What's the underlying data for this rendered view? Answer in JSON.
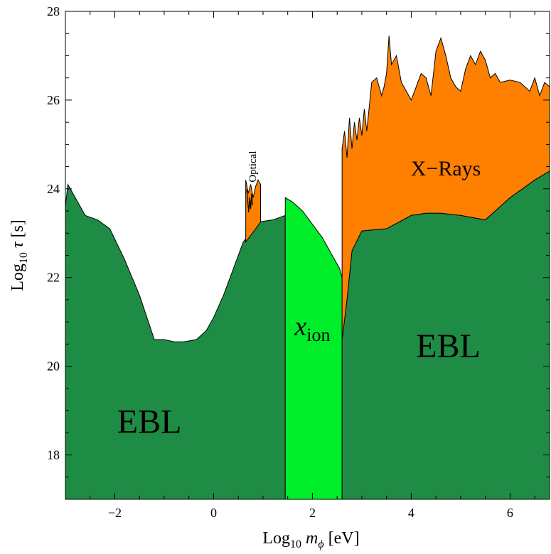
{
  "chart_data": {
    "type": "area",
    "title": "",
    "xlabel": "Log₁₀ mϕ [eV]",
    "ylabel": "Log₁₀ τ [s]",
    "xlabel_parts": {
      "prefix": "Log",
      "sub": "10",
      "var": "m",
      "var_sub": "ϕ",
      "unit": " [eV]"
    },
    "ylabel_parts": {
      "prefix": "Log",
      "sub": "10",
      "var": "τ",
      "unit": " [s]"
    },
    "xlim": [
      -3,
      6.8
    ],
    "ylim": [
      17,
      28
    ],
    "xticks": [
      -2,
      0,
      2,
      4,
      6
    ],
    "xtick_labels": [
      "−2",
      "0",
      "2",
      "4",
      "6"
    ],
    "yticks": [
      18,
      20,
      22,
      24,
      26,
      28
    ],
    "ytick_labels": [
      "18",
      "20",
      "22",
      "24",
      "26",
      "28"
    ],
    "colors": {
      "ebl": "#1f8c45",
      "xion": "#00ee2a",
      "xrays": "#ff8000",
      "optical": "#ff8000"
    },
    "regions": [
      {
        "name": "EBL",
        "label": "EBL",
        "color_key": "ebl",
        "label_pos": {
          "x": -1.3,
          "y": 18.5
        },
        "boundary": [
          [
            -3.0,
            23.6
          ],
          [
            -2.95,
            24.1
          ],
          [
            -2.6,
            23.4
          ],
          [
            -2.35,
            23.3
          ],
          [
            -2.1,
            23.1
          ],
          [
            -1.8,
            22.4
          ],
          [
            -1.5,
            21.6
          ],
          [
            -1.2,
            20.6
          ],
          [
            -1.0,
            20.6
          ],
          [
            -0.8,
            20.55
          ],
          [
            -0.6,
            20.55
          ],
          [
            -0.35,
            20.6
          ],
          [
            -0.15,
            20.8
          ],
          [
            0.0,
            21.1
          ],
          [
            0.2,
            21.6
          ],
          [
            0.4,
            22.2
          ],
          [
            0.6,
            22.8
          ],
          [
            0.9,
            23.25
          ],
          [
            1.2,
            23.3
          ],
          [
            1.45,
            23.4
          ]
        ]
      },
      {
        "name": "x_ion",
        "label": "x",
        "label_sub": "ion",
        "color_key": "xion",
        "label_pos": {
          "x": 2.0,
          "y": 20.7
        },
        "boundary": [
          [
            1.45,
            23.8
          ],
          [
            1.6,
            23.7
          ],
          [
            1.8,
            23.5
          ],
          [
            2.0,
            23.2
          ],
          [
            2.2,
            22.9
          ],
          [
            2.4,
            22.5
          ],
          [
            2.55,
            22.2
          ],
          [
            2.6,
            22.0
          ]
        ]
      },
      {
        "name": "EBL",
        "label": "EBL",
        "color_key": "ebl",
        "label_pos": {
          "x": 4.75,
          "y": 20.2
        },
        "boundary": [
          [
            2.6,
            20.6
          ],
          [
            2.7,
            21.5
          ],
          [
            2.8,
            22.6
          ],
          [
            3.0,
            23.05
          ],
          [
            3.5,
            23.1
          ],
          [
            4.0,
            23.4
          ],
          [
            4.3,
            23.45
          ],
          [
            4.6,
            23.45
          ],
          [
            5.0,
            23.4
          ],
          [
            5.5,
            23.3
          ],
          [
            6.0,
            23.8
          ],
          [
            6.5,
            24.2
          ],
          [
            6.8,
            24.4
          ]
        ]
      },
      {
        "name": "X-Rays",
        "label": "X−Rays",
        "color_key": "xrays",
        "label_pos": {
          "x": 4.7,
          "y": 24.3
        },
        "upper": [
          [
            2.6,
            24.9
          ],
          [
            2.65,
            25.3
          ],
          [
            2.7,
            24.7
          ],
          [
            2.75,
            25.6
          ],
          [
            2.8,
            24.9
          ],
          [
            2.85,
            25.5
          ],
          [
            2.9,
            25.1
          ],
          [
            2.95,
            25.6
          ],
          [
            3.0,
            25.2
          ],
          [
            3.05,
            25.8
          ],
          [
            3.1,
            25.3
          ],
          [
            3.2,
            26.4
          ],
          [
            3.3,
            26.5
          ],
          [
            3.4,
            26.1
          ],
          [
            3.45,
            26.3
          ],
          [
            3.5,
            26.6
          ],
          [
            3.55,
            27.45
          ],
          [
            3.6,
            26.8
          ],
          [
            3.7,
            27.0
          ],
          [
            3.8,
            26.4
          ],
          [
            3.9,
            26.2
          ],
          [
            4.0,
            26.0
          ],
          [
            4.1,
            26.3
          ],
          [
            4.2,
            26.6
          ],
          [
            4.3,
            26.5
          ],
          [
            4.4,
            26.1
          ],
          [
            4.5,
            27.1
          ],
          [
            4.6,
            27.4
          ],
          [
            4.7,
            27.0
          ],
          [
            4.8,
            26.5
          ],
          [
            4.9,
            26.3
          ],
          [
            5.0,
            26.2
          ],
          [
            5.1,
            26.7
          ],
          [
            5.2,
            27.0
          ],
          [
            5.3,
            26.8
          ],
          [
            5.4,
            27.1
          ],
          [
            5.5,
            26.9
          ],
          [
            5.6,
            26.5
          ],
          [
            5.7,
            26.6
          ],
          [
            5.8,
            26.4
          ],
          [
            6.0,
            26.45
          ],
          [
            6.2,
            26.4
          ],
          [
            6.4,
            26.2
          ],
          [
            6.5,
            26.5
          ],
          [
            6.6,
            26.1
          ],
          [
            6.7,
            26.4
          ],
          [
            6.8,
            26.3
          ]
        ]
      },
      {
        "name": "Optical",
        "label": "Optical",
        "color_key": "optical",
        "label_pos": {
          "x": 0.8,
          "y": 24.5
        },
        "x_range": [
          0.65,
          0.95
        ],
        "top": [
          [
            0.65,
            24.2
          ],
          [
            0.7,
            23.9
          ],
          [
            0.75,
            24.1
          ],
          [
            0.8,
            23.8
          ],
          [
            0.85,
            24.05
          ],
          [
            0.9,
            24.2
          ],
          [
            0.95,
            24.1
          ]
        ]
      }
    ],
    "grid": false
  }
}
